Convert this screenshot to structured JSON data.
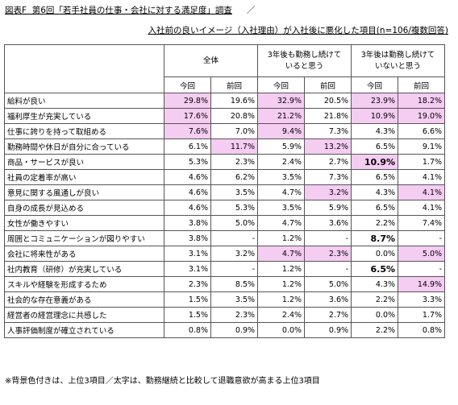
{
  "title": {
    "prefix": "図表F",
    "text": "第6回「若手社員の仕事・会社に対する満足度」調査",
    "slash": "／"
  },
  "subtitle": "入社前の良いイメージ（入社理由）が入社後に悪化した項目(n=106/複数回答)",
  "header": {
    "groups": [
      {
        "label": "全体"
      },
      {
        "label_line1": "3年後も勤務し続けて",
        "label_line2": "いると思う"
      },
      {
        "label_line1": "3年後は勤務し続けて",
        "label_line2": "いないと思う"
      }
    ],
    "now": "今回",
    "prev": "前回"
  },
  "rows": [
    {
      "label": "給料が良い",
      "values": [
        "29.8%",
        "19.6%",
        "32.9%",
        "20.5%",
        "23.9%",
        "18.2%"
      ],
      "highlight": [
        true,
        false,
        true,
        false,
        true,
        true
      ],
      "bold": [
        false,
        false,
        false,
        false,
        false,
        false
      ]
    },
    {
      "label": "福利厚生が充実している",
      "values": [
        "17.6%",
        "20.8%",
        "21.2%",
        "21.8%",
        "10.9%",
        "19.0%"
      ],
      "highlight": [
        true,
        false,
        true,
        false,
        true,
        true
      ],
      "bold": [
        false,
        false,
        false,
        false,
        false,
        false
      ]
    },
    {
      "label": "仕事に誇りを持って取組める",
      "values": [
        "7.6%",
        "7.0%",
        "9.4%",
        "7.3%",
        "4.3%",
        "6.6%"
      ],
      "highlight": [
        true,
        false,
        true,
        false,
        false,
        false
      ],
      "bold": [
        false,
        false,
        false,
        false,
        false,
        false
      ]
    },
    {
      "label": "勤務時間や休日が自分に合っている",
      "values": [
        "6.1%",
        "11.7%",
        "5.9%",
        "13.2%",
        "6.5%",
        "9.1%"
      ],
      "highlight": [
        false,
        true,
        false,
        true,
        false,
        false
      ],
      "bold": [
        false,
        false,
        false,
        false,
        false,
        false
      ]
    },
    {
      "label": "商品・サービスが良い",
      "values": [
        "5.3%",
        "2.3%",
        "2.4%",
        "2.7%",
        "10.9%",
        "1.7%"
      ],
      "highlight": [
        false,
        false,
        false,
        false,
        true,
        false
      ],
      "bold": [
        false,
        false,
        false,
        false,
        true,
        false
      ]
    },
    {
      "label": "社員の定着率が高い",
      "values": [
        "4.6%",
        "6.2%",
        "3.5%",
        "7.3%",
        "6.5%",
        "4.1%"
      ],
      "highlight": [
        false,
        false,
        false,
        false,
        false,
        false
      ],
      "bold": [
        false,
        false,
        false,
        false,
        false,
        false
      ]
    },
    {
      "label": "意見に関する風通しが良い",
      "values": [
        "4.6%",
        "3.5%",
        "4.7%",
        "3.2%",
        "4.3%",
        "4.1%"
      ],
      "highlight": [
        false,
        false,
        false,
        true,
        false,
        true
      ],
      "bold": [
        false,
        false,
        false,
        false,
        false,
        false
      ]
    },
    {
      "label": "自身の成長が見込める",
      "values": [
        "4.6%",
        "5.3%",
        "3.5%",
        "5.9%",
        "6.5%",
        "4.1%"
      ],
      "highlight": [
        false,
        false,
        false,
        false,
        false,
        false
      ],
      "bold": [
        false,
        false,
        false,
        false,
        false,
        false
      ]
    },
    {
      "label": "女性が働きやすい",
      "values": [
        "3.8%",
        "5.0%",
        "4.7%",
        "3.6%",
        "2.2%",
        "7.4%"
      ],
      "highlight": [
        false,
        false,
        false,
        false,
        false,
        false
      ],
      "bold": [
        false,
        false,
        false,
        false,
        false,
        false
      ]
    },
    {
      "label": "周囲とコミュニケーションが図りやすい",
      "values": [
        "3.8%",
        "-",
        "1.2%",
        "-",
        "8.7%",
        "-"
      ],
      "highlight": [
        false,
        false,
        false,
        false,
        false,
        false
      ],
      "bold": [
        false,
        false,
        false,
        false,
        true,
        false
      ]
    },
    {
      "label": "会社に将来性がある",
      "values": [
        "3.1%",
        "3.2%",
        "4.7%",
        "2.3%",
        "0.0%",
        "5.0%"
      ],
      "highlight": [
        false,
        false,
        true,
        true,
        false,
        true
      ],
      "bold": [
        false,
        false,
        false,
        false,
        false,
        false
      ]
    },
    {
      "label": "社内教育（研修）が充実している",
      "values": [
        "3.1%",
        "-",
        "1.2%",
        "-",
        "6.5%",
        "-"
      ],
      "highlight": [
        false,
        false,
        false,
        false,
        false,
        false
      ],
      "bold": [
        false,
        false,
        false,
        false,
        true,
        false
      ]
    },
    {
      "label": "スキルや経験を形成するため",
      "values": [
        "2.3%",
        "8.5%",
        "1.2%",
        "5.0%",
        "4.3%",
        "14.9%"
      ],
      "highlight": [
        false,
        false,
        false,
        false,
        false,
        true
      ],
      "bold": [
        false,
        false,
        false,
        false,
        false,
        false
      ]
    },
    {
      "label": "社会的な存在意義がある",
      "values": [
        "1.5%",
        "3.5%",
        "1.2%",
        "3.6%",
        "2.2%",
        "3.3%"
      ],
      "highlight": [
        false,
        false,
        false,
        false,
        false,
        false
      ],
      "bold": [
        false,
        false,
        false,
        false,
        false,
        false
      ]
    },
    {
      "label": "経営者の経営理念に共感した",
      "values": [
        "1.5%",
        "2.3%",
        "2.4%",
        "2.7%",
        "0.0%",
        "1.7%"
      ],
      "highlight": [
        false,
        false,
        false,
        false,
        false,
        false
      ],
      "bold": [
        false,
        false,
        false,
        false,
        false,
        false
      ]
    },
    {
      "label": "人事評価制度が確立されている",
      "values": [
        "0.8%",
        "0.9%",
        "0.0%",
        "0.9%",
        "2.2%",
        "0.8%"
      ],
      "highlight": [
        false,
        false,
        false,
        false,
        false,
        false
      ],
      "bold": [
        false,
        false,
        false,
        false,
        false,
        false
      ]
    }
  ],
  "highlight_color": "#f5ccf2",
  "note": "※背景色付きは、上位3項目／太字は、勤務継続と比較して退職意欲が高まる上位3項目"
}
